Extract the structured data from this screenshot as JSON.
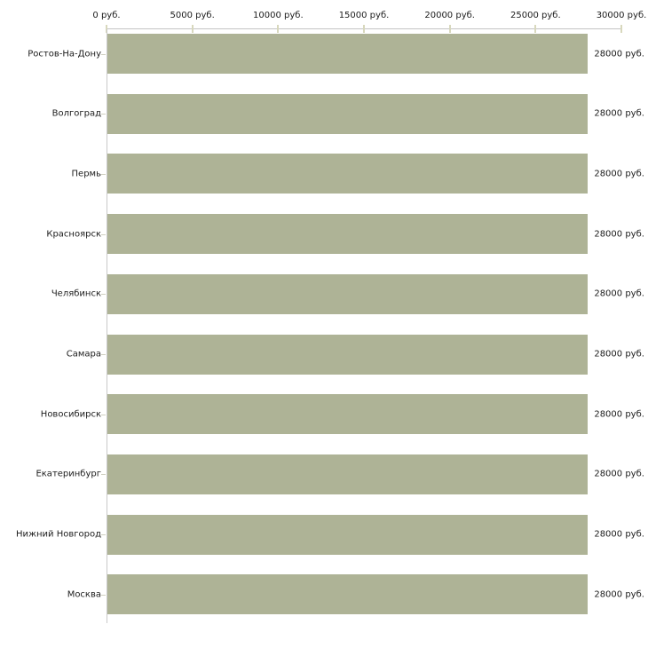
{
  "chart_data": {
    "type": "bar",
    "orientation": "horizontal",
    "title": "",
    "categories": [
      "Ростов-На-Дону",
      "Волгоград",
      "Пермь",
      "Красноярск",
      "Челябинск",
      "Самара",
      "Новосибирск",
      "Екатеринбург",
      "Нижний Новгород",
      "Москва"
    ],
    "values": [
      28000,
      28000,
      28000,
      28000,
      28000,
      28000,
      28000,
      28000,
      28000,
      28000
    ],
    "value_labels": [
      "28000 руб.",
      "28000 руб.",
      "28000 руб.",
      "28000 руб.",
      "28000 руб.",
      "28000 руб.",
      "28000 руб.",
      "28000 руб.",
      "28000 руб.",
      "28000 руб."
    ],
    "x_tick_labels": [
      "0 руб.",
      "5000 руб.",
      "10000 руб.",
      "15000 руб.",
      "20000 руб.",
      "25000 руб.",
      "30000 руб."
    ],
    "x_tick_values": [
      0,
      5000,
      10000,
      15000,
      20000,
      25000,
      30000
    ],
    "xlim": [
      0,
      30000
    ],
    "unit": "руб.",
    "grid": "off",
    "legend": "none",
    "colors": {
      "bar": "#aeb396",
      "axis_line": "#c3c3c3",
      "y_axis_line": "#c9c9c9",
      "tick_mark": "#d8d8bd",
      "category_tick": "#cfcfc0",
      "text": "#1c1c1c",
      "background": "#ffffff"
    }
  }
}
